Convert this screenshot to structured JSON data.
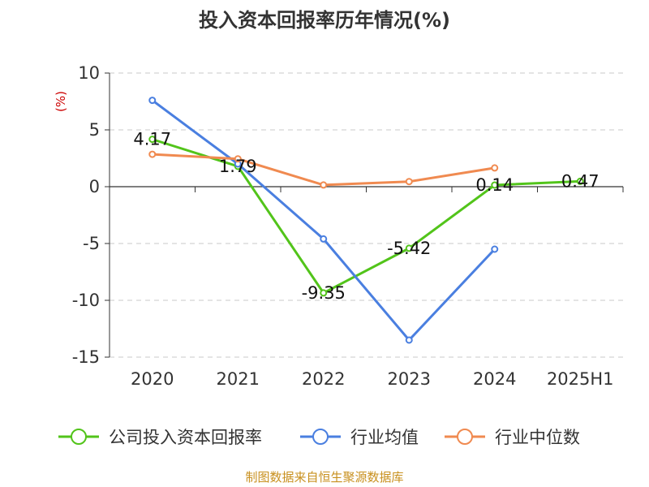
{
  "chart_data": {
    "type": "line",
    "title": "投入资本回报率历年情况(%)",
    "ylabel": "(%)",
    "categories": [
      "2020",
      "2021",
      "2022",
      "2023",
      "2024",
      "2025H1"
    ],
    "ylim": [
      -15,
      10
    ],
    "yticks": [
      10,
      5,
      0,
      -5,
      -10,
      -15
    ],
    "grid": true,
    "legend_position": "bottom",
    "series": [
      {
        "name": "公司投入资本回报率",
        "color": "#52c41a",
        "values": [
          4.17,
          1.79,
          -9.35,
          -5.42,
          0.14,
          0.47
        ],
        "labels": [
          "4.17",
          "1.79",
          "-9.35",
          "-5.42",
          "0.14",
          "0.47"
        ]
      },
      {
        "name": "行业均值",
        "color": "#4a7fe0",
        "values": [
          7.6,
          2.0,
          -4.6,
          -13.5,
          -5.5,
          null
        ]
      },
      {
        "name": "行业中位数",
        "color": "#f08a50",
        "values": [
          2.85,
          2.45,
          0.15,
          0.45,
          1.65,
          null
        ]
      }
    ]
  },
  "source": "制图数据来自恒生聚源数据库"
}
